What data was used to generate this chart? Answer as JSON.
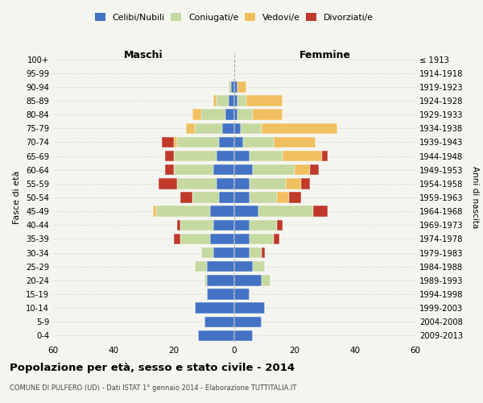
{
  "age_groups": [
    "0-4",
    "5-9",
    "10-14",
    "15-19",
    "20-24",
    "25-29",
    "30-34",
    "35-39",
    "40-44",
    "45-49",
    "50-54",
    "55-59",
    "60-64",
    "65-69",
    "70-74",
    "75-79",
    "80-84",
    "85-89",
    "90-94",
    "95-99",
    "100+"
  ],
  "birth_years": [
    "2009-2013",
    "2004-2008",
    "1999-2003",
    "1994-1998",
    "1989-1993",
    "1984-1988",
    "1979-1983",
    "1974-1978",
    "1969-1973",
    "1964-1968",
    "1959-1963",
    "1954-1958",
    "1949-1953",
    "1944-1948",
    "1939-1943",
    "1934-1938",
    "1929-1933",
    "1924-1928",
    "1919-1923",
    "1914-1918",
    "≤ 1913"
  ],
  "maschi": {
    "celibi": [
      12,
      10,
      13,
      9,
      9,
      9,
      7,
      8,
      7,
      8,
      5,
      6,
      7,
      6,
      5,
      4,
      3,
      2,
      1,
      0,
      0
    ],
    "coniugati": [
      0,
      0,
      0,
      0,
      1,
      4,
      4,
      10,
      11,
      18,
      9,
      13,
      13,
      14,
      14,
      9,
      8,
      4,
      1,
      0,
      0
    ],
    "vedovi": [
      0,
      0,
      0,
      0,
      0,
      0,
      0,
      0,
      0,
      1,
      0,
      0,
      0,
      0,
      1,
      3,
      3,
      1,
      0,
      0,
      0
    ],
    "divorziati": [
      0,
      0,
      0,
      0,
      0,
      0,
      0,
      2,
      1,
      0,
      4,
      6,
      3,
      3,
      4,
      0,
      0,
      0,
      0,
      0,
      0
    ]
  },
  "femmine": {
    "nubili": [
      6,
      9,
      10,
      5,
      9,
      6,
      5,
      5,
      5,
      8,
      5,
      5,
      6,
      5,
      3,
      2,
      1,
      1,
      1,
      0,
      0
    ],
    "coniugate": [
      0,
      0,
      0,
      0,
      3,
      4,
      4,
      8,
      9,
      18,
      9,
      12,
      14,
      11,
      10,
      7,
      5,
      3,
      0,
      0,
      0
    ],
    "vedove": [
      0,
      0,
      0,
      0,
      0,
      0,
      0,
      0,
      0,
      0,
      4,
      5,
      5,
      13,
      14,
      25,
      10,
      12,
      3,
      0,
      0
    ],
    "divorziate": [
      0,
      0,
      0,
      0,
      0,
      0,
      1,
      2,
      2,
      5,
      4,
      3,
      3,
      2,
      0,
      0,
      0,
      0,
      0,
      0,
      0
    ]
  },
  "colors": {
    "celibi": "#4472c4",
    "coniugati": "#c5d9a0",
    "vedovi": "#f0c060",
    "divorziati": "#c0392b"
  },
  "xlim": 60,
  "title": "Popolazione per età, sesso e stato civile - 2014",
  "subtitle": "COMUNE DI PULFERO (UD) - Dati ISTAT 1° gennaio 2014 - Elaborazione TUTTITALIA.IT",
  "ylabel_left": "Fasce di età",
  "ylabel_right": "Anni di nascita",
  "xlabel_maschi": "Maschi",
  "xlabel_femmine": "Femmine",
  "background_color": "#f5f5f0",
  "legend_labels": [
    "Celibi/Nubili",
    "Coniugati/e",
    "Vedovi/e",
    "Divorziati/e"
  ]
}
